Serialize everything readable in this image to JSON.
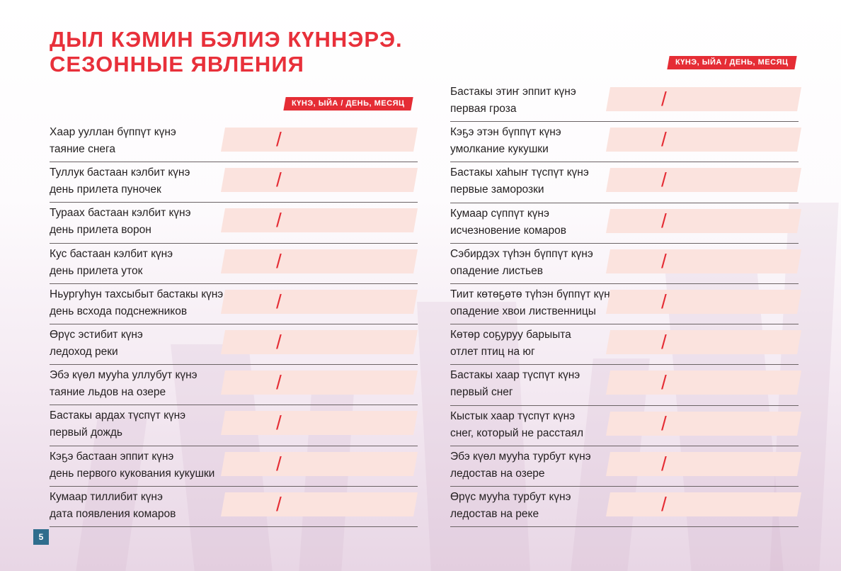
{
  "title": {
    "line1": "ДЫЛ КЭМИН БЭЛИЭ КҮННЭРЭ.",
    "line2": "СЕЗОННЫЕ ЯВЛЕНИЯ"
  },
  "column_header": "КҮНЭ, ЫЙА / ДЕНЬ, МЕСЯЦ",
  "date_separator": "/",
  "page_number": "5",
  "left_rows": [
    {
      "yakut": "Хаар ууллан бүппүт күнэ",
      "russian": "таяние снега",
      "value": ""
    },
    {
      "yakut": "Туллук бастаан кэлбит күнэ",
      "russian": "день прилета пуночек",
      "value": ""
    },
    {
      "yakut": "Тураах бастаан кэлбит күнэ",
      "russian": "день прилета ворон",
      "value": ""
    },
    {
      "yakut": "Кус бастаан кэлбит күнэ",
      "russian": "день прилета уток",
      "value": ""
    },
    {
      "yakut": "Ньургуһун тахсыбыт бастакы күнэ",
      "russian": "день всхода подснежников",
      "value": ""
    },
    {
      "yakut": "Өрүс эстибит күнэ",
      "russian": "ледоход реки",
      "value": ""
    },
    {
      "yakut": "Эбэ күөл мууһа уллубут күнэ",
      "russian": "таяние льдов на озере",
      "value": ""
    },
    {
      "yakut": "Бастакы ардах түспүт күнэ",
      "russian": "первый дождь",
      "value": ""
    },
    {
      "yakut": "Кэҕэ бастаан эппит күнэ",
      "russian": "день первого кукования кукушки",
      "value": ""
    },
    {
      "yakut": "Кумаар тиллибит күнэ",
      "russian": "дата появления комаров",
      "value": ""
    }
  ],
  "right_rows": [
    {
      "yakut": "Бастакы этиҥ эппит күнэ",
      "russian": "первая гроза",
      "value": ""
    },
    {
      "yakut": "Кэҕэ этэн бүппүт күнэ",
      "russian": "умолкание кукушки",
      "value": ""
    },
    {
      "yakut": "Бастакы хаһыҥ түспүт күнэ",
      "russian": "первые заморозки",
      "value": ""
    },
    {
      "yakut": "Кумаар сүппүт күнэ",
      "russian": "исчезновение комаров",
      "value": ""
    },
    {
      "yakut": "Сэбирдэх түһэн бүппүт күнэ",
      "russian": "опадение листьев",
      "value": ""
    },
    {
      "yakut": "Тиит көтөҕөтө түһэн бүппүт күнэ",
      "russian": "опадение хвои лиственницы",
      "value": ""
    },
    {
      "yakut": "Көтөр соҕуруу барыыта",
      "russian": "отлет птиц на юг",
      "value": ""
    },
    {
      "yakut": "Бастакы хаар түспүт күнэ",
      "russian": "первый снег",
      "value": ""
    },
    {
      "yakut": "Кыстык хаар түспүт күнэ",
      "russian": "снег, который не расстаял",
      "value": ""
    },
    {
      "yakut": "Эбэ күөл мууһа турбут күнэ",
      "russian": "ледостав на озере",
      "value": ""
    },
    {
      "yakut": "Өрүс мууһа турбут күнэ",
      "russian": "ледостав на реке",
      "value": ""
    }
  ]
}
